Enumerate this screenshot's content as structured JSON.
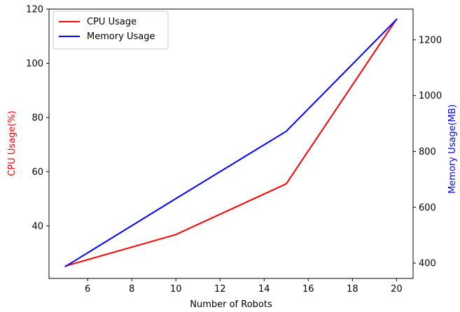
{
  "chart_data": {
    "type": "line",
    "xlabel": "Number of Robots",
    "ylabel_left": "CPU Usage(%)",
    "ylabel_right": "Memory Usage(MB)",
    "x": [
      5,
      10,
      15,
      20
    ],
    "x_ticks": [
      6,
      8,
      10,
      12,
      14,
      16,
      18,
      20
    ],
    "xlim": [
      4.25,
      20.75
    ],
    "ylim_left": [
      20.6,
      120
    ],
    "ylim_right": [
      345,
      1310
    ],
    "y_ticks_left": [
      40,
      60,
      80,
      100,
      120
    ],
    "y_ticks_right": [
      400,
      600,
      800,
      1000,
      1200
    ],
    "grid": false,
    "legend_position": "top-left",
    "series": [
      {
        "name": "CPU Usage",
        "axis": "left",
        "color": "#ff0000",
        "values": [
          25.2,
          36.8,
          55.5,
          116.3
        ]
      },
      {
        "name": "Memory Usage",
        "axis": "right",
        "color": "#0000ff",
        "values": [
          388,
          631,
          872,
          1273
        ]
      }
    ],
    "colors": {
      "left_label": "#ff0000",
      "right_label": "#0000ff",
      "axes": "#000000"
    }
  }
}
